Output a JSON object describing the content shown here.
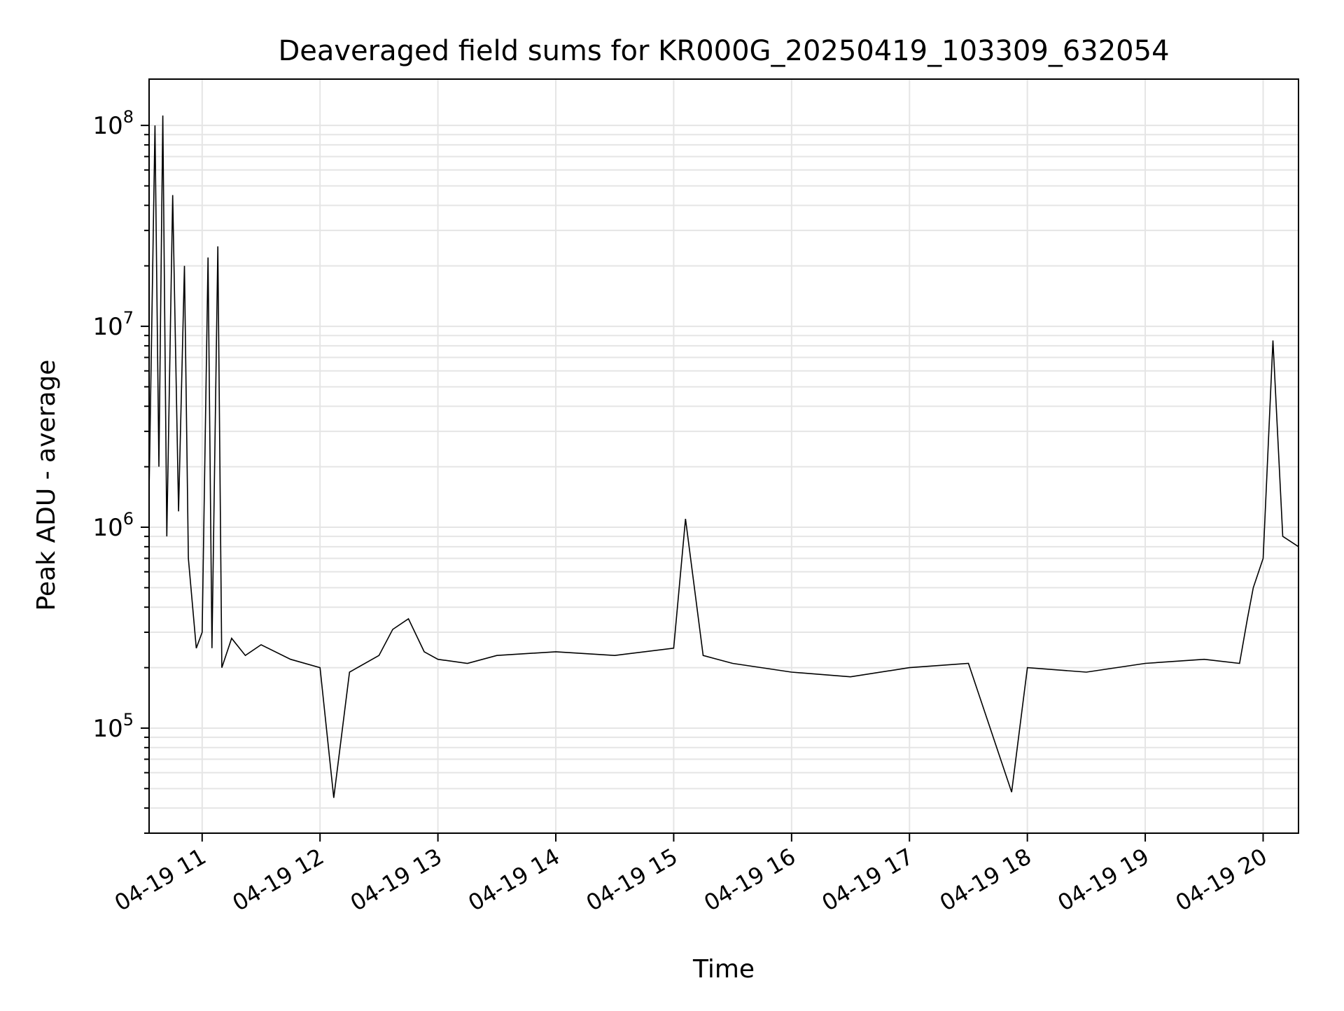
{
  "chart_data": {
    "type": "line",
    "title": "Deaveraged field sums for KR000G_20250419_103309_632054",
    "xlabel": "Time",
    "ylabel": "Peak ADU - average",
    "x_tick_labels": [
      "04-19 11",
      "04-19 12",
      "04-19 13",
      "04-19 14",
      "04-19 15",
      "04-19 16",
      "04-19 17",
      "04-19 18",
      "04-19 19",
      "04-19 20"
    ],
    "x_ticks": [
      "2025-04-19 11:00",
      "2025-04-19 12:00",
      "2025-04-19 13:00",
      "2025-04-19 14:00",
      "2025-04-19 15:00",
      "2025-04-19 16:00",
      "2025-04-19 17:00",
      "2025-04-19 18:00",
      "2025-04-19 19:00",
      "2025-04-19 20:00"
    ],
    "xlim": [
      "2025-04-19 10:33",
      "2025-04-19 20:18"
    ],
    "y_scale": "log",
    "y_ticks": [
      {
        "value": 100000,
        "base": "10",
        "exp": "5"
      },
      {
        "value": 1000000,
        "base": "10",
        "exp": "6"
      },
      {
        "value": 10000000,
        "base": "10",
        "exp": "7"
      },
      {
        "value": 100000000,
        "base": "10",
        "exp": "8"
      }
    ],
    "ylim": [
      30000,
      170000000
    ],
    "grid": true,
    "colors": {
      "line": "#000000",
      "grid": "#e5e5e5",
      "axes": "#000000",
      "background": "#ffffff"
    },
    "series": [
      {
        "x": [
          "2025-04-19 10:33",
          "2025-04-19 10:36",
          "2025-04-19 10:38",
          "2025-04-19 10:40",
          "2025-04-19 10:42",
          "2025-04-19 10:45",
          "2025-04-19 10:48",
          "2025-04-19 10:51",
          "2025-04-19 10:53",
          "2025-04-19 10:57",
          "2025-04-19 11:00",
          "2025-04-19 11:03",
          "2025-04-19 11:05",
          "2025-04-19 11:08",
          "2025-04-19 11:10",
          "2025-04-19 11:15",
          "2025-04-19 11:22",
          "2025-04-19 11:30",
          "2025-04-19 11:45",
          "2025-04-19 12:00",
          "2025-04-19 12:07",
          "2025-04-19 12:15",
          "2025-04-19 12:30",
          "2025-04-19 12:37",
          "2025-04-19 12:45",
          "2025-04-19 12:53",
          "2025-04-19 13:00",
          "2025-04-19 13:15",
          "2025-04-19 13:30",
          "2025-04-19 14:00",
          "2025-04-19 14:30",
          "2025-04-19 15:00",
          "2025-04-19 15:06",
          "2025-04-19 15:15",
          "2025-04-19 15:30",
          "2025-04-19 16:00",
          "2025-04-19 16:30",
          "2025-04-19 17:00",
          "2025-04-19 17:30",
          "2025-04-19 17:52",
          "2025-04-19 18:00",
          "2025-04-19 18:30",
          "2025-04-19 19:00",
          "2025-04-19 19:30",
          "2025-04-19 19:48",
          "2025-04-19 19:52",
          "2025-04-19 19:55",
          "2025-04-19 20:00",
          "2025-04-19 20:05",
          "2025-04-19 20:10",
          "2025-04-19 20:18"
        ],
        "y": [
          1500000,
          100000000,
          2000000,
          112000000,
          900000,
          45000000,
          1200000,
          20000000,
          700000,
          250000,
          300000,
          22000000,
          250000,
          25000000,
          200000,
          280000,
          230000,
          260000,
          220000,
          200000,
          45000,
          190000,
          230000,
          310000,
          350000,
          240000,
          220000,
          210000,
          230000,
          240000,
          230000,
          250000,
          1100000,
          230000,
          210000,
          190000,
          180000,
          200000,
          210000,
          48000,
          200000,
          190000,
          210000,
          220000,
          210000,
          350000,
          500000,
          700000,
          8500000,
          900000,
          800000
        ]
      }
    ]
  }
}
